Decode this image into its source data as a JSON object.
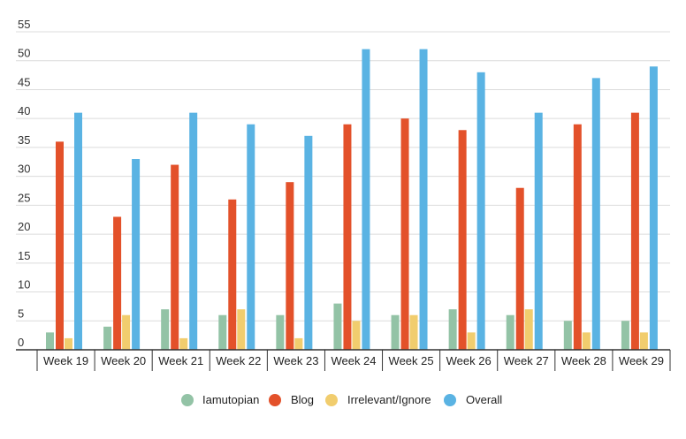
{
  "chart_data": {
    "type": "bar",
    "title": "",
    "xlabel": "",
    "ylabel": "",
    "ylim": [
      0,
      55
    ],
    "yticks": [
      0,
      5,
      10,
      15,
      20,
      25,
      30,
      35,
      40,
      45,
      50,
      55
    ],
    "grid": true,
    "legend_position": "bottom",
    "categories": [
      "Week 19",
      "Week 20",
      "Week 21",
      "Week 22",
      "Week 23",
      "Week 24",
      "Week 25",
      "Week 26",
      "Week 27",
      "Week 28",
      "Week 29"
    ],
    "series": [
      {
        "name": "Iamutopian",
        "color": "#93c3a6",
        "values": [
          3,
          4,
          7,
          6,
          6,
          8,
          6,
          7,
          6,
          5,
          5
        ]
      },
      {
        "name": "Blog",
        "color": "#e3512a",
        "values": [
          36,
          23,
          32,
          26,
          29,
          39,
          40,
          38,
          28,
          39,
          41
        ]
      },
      {
        "name": "Irrelevant/Ignore",
        "color": "#f1cd6e",
        "values": [
          2,
          6,
          2,
          7,
          2,
          5,
          6,
          3,
          7,
          3,
          3
        ]
      },
      {
        "name": "Overall",
        "color": "#5ab3e3",
        "values": [
          41,
          33,
          41,
          39,
          37,
          52,
          52,
          48,
          41,
          47,
          49
        ]
      }
    ]
  }
}
